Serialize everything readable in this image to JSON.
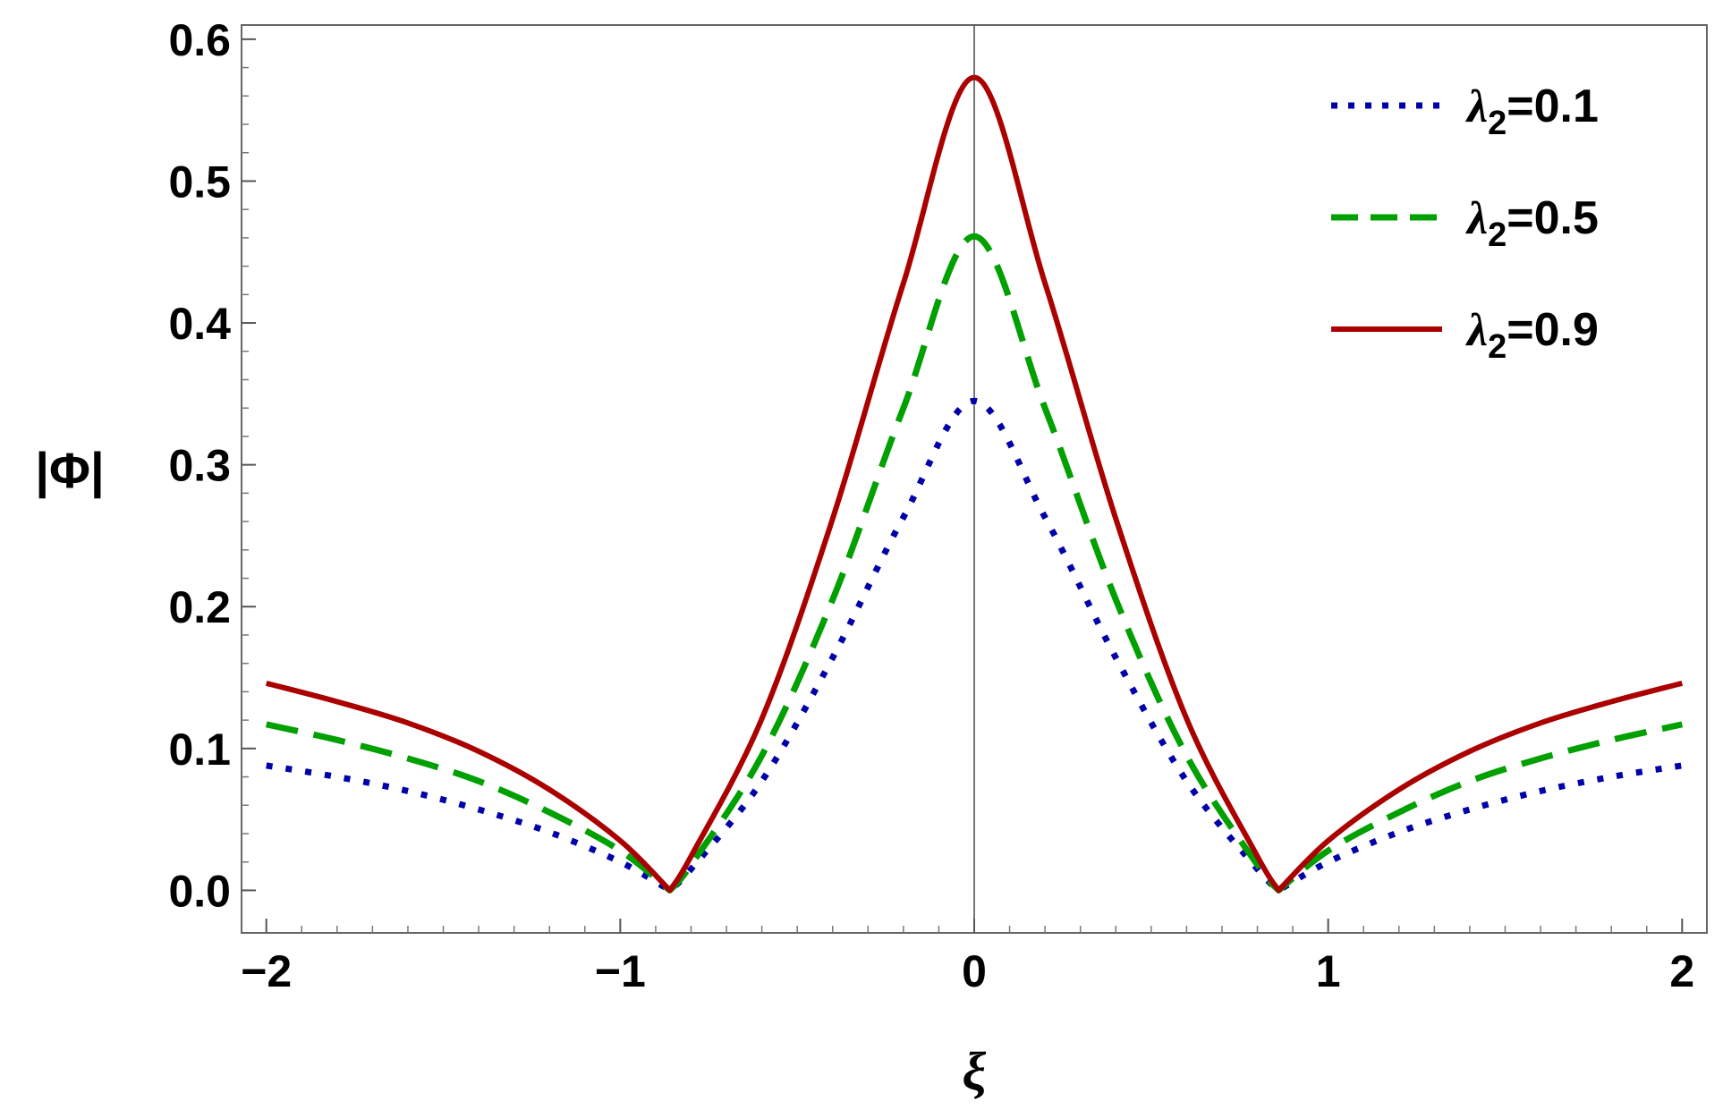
{
  "chart_data": {
    "type": "line",
    "xlabel": "ξ",
    "ylabel": "|Φ|",
    "xlim": [
      -2.07,
      2.07
    ],
    "ylim": [
      -0.03,
      0.61
    ],
    "x_ticks": [
      -2,
      -1,
      0,
      1,
      2
    ],
    "x_tick_labels": [
      "−2",
      "−1",
      "0",
      "1",
      "2"
    ],
    "y_ticks": [
      0.0,
      0.1,
      0.2,
      0.3,
      0.4,
      0.5,
      0.6
    ],
    "y_tick_labels": [
      "0.0",
      "0.1",
      "0.2",
      "0.3",
      "0.4",
      "0.5",
      "0.6"
    ],
    "grid": false,
    "legend_position": "top-right",
    "vertical_reference_line_at_x": 0,
    "x": [
      -2.0,
      -1.8,
      -1.6,
      -1.4,
      -1.2,
      -1.0,
      -0.86,
      -0.8,
      -0.6,
      -0.4,
      -0.2,
      0.0,
      0.2,
      0.4,
      0.6,
      0.8,
      0.86,
      1.0,
      1.2,
      1.4,
      1.6,
      1.8,
      2.0
    ],
    "series": [
      {
        "name": "λ2=0.1",
        "legend_symbol": "λ",
        "legend_subscript": "2",
        "legend_value": "=0.1",
        "color": "#0000aa",
        "style": "dotted",
        "values": [
          0.088,
          0.08,
          0.07,
          0.057,
          0.041,
          0.02,
          0.0,
          0.015,
          0.077,
          0.164,
          0.263,
          0.345,
          0.263,
          0.164,
          0.077,
          0.015,
          0.0,
          0.02,
          0.041,
          0.057,
          0.07,
          0.08,
          0.088
        ]
      },
      {
        "name": "λ2=0.5",
        "legend_symbol": "λ",
        "legend_subscript": "2",
        "legend_value": "=0.5",
        "color": "#00a000",
        "style": "dashed",
        "values": [
          0.117,
          0.106,
          0.093,
          0.077,
          0.055,
          0.028,
          0.0,
          0.018,
          0.095,
          0.205,
          0.34,
          0.461,
          0.34,
          0.205,
          0.095,
          0.018,
          0.0,
          0.028,
          0.055,
          0.077,
          0.093,
          0.106,
          0.117
        ]
      },
      {
        "name": "λ2=0.9",
        "legend_symbol": "λ",
        "legend_subscript": "2",
        "legend_value": "=0.9",
        "color": "#aa0000",
        "style": "solid",
        "values": [
          0.146,
          0.133,
          0.118,
          0.098,
          0.071,
          0.035,
          0.0,
          0.024,
          0.121,
          0.262,
          0.428,
          0.573,
          0.428,
          0.262,
          0.121,
          0.024,
          0.0,
          0.035,
          0.071,
          0.098,
          0.118,
          0.133,
          0.146
        ]
      }
    ]
  }
}
